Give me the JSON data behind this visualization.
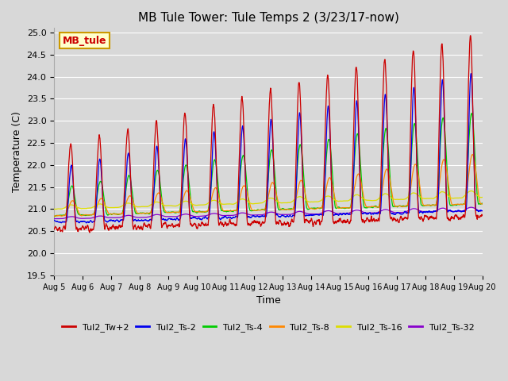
{
  "title": "MB Tule Tower: Tule Temps 2 (3/23/17-now)",
  "xlabel": "Time",
  "ylabel": "Temperature (C)",
  "ylim": [
    19.5,
    25.1
  ],
  "xlim_days": 15,
  "background_color": "#d8d8d8",
  "plot_bg_color": "#d8d8d8",
  "grid_color": "#ffffff",
  "series": [
    {
      "label": "Tul2_Tw+2",
      "color": "#cc0000"
    },
    {
      "label": "Tul2_Ts-2",
      "color": "#0000ee"
    },
    {
      "label": "Tul2_Ts-4",
      "color": "#00cc00"
    },
    {
      "label": "Tul2_Ts-8",
      "color": "#ff8800"
    },
    {
      "label": "Tul2_Ts-16",
      "color": "#dddd00"
    },
    {
      "label": "Tul2_Ts-32",
      "color": "#8800cc"
    }
  ],
  "xtick_labels": [
    "Aug 5",
    "Aug 6",
    "Aug 7",
    "Aug 8",
    "Aug 9",
    "Aug 10",
    "Aug 11",
    "Aug 12",
    "Aug 13",
    "Aug 14",
    "Aug 15",
    "Aug 16",
    "Aug 17",
    "Aug 18",
    "Aug 19",
    "Aug 20"
  ],
  "yticks": [
    19.5,
    20.0,
    20.5,
    21.0,
    21.5,
    22.0,
    22.5,
    23.0,
    23.5,
    24.0,
    24.5,
    25.0
  ],
  "watermark_text": "MB_tule",
  "watermark_bg": "#ffffcc",
  "watermark_border": "#cc9900"
}
